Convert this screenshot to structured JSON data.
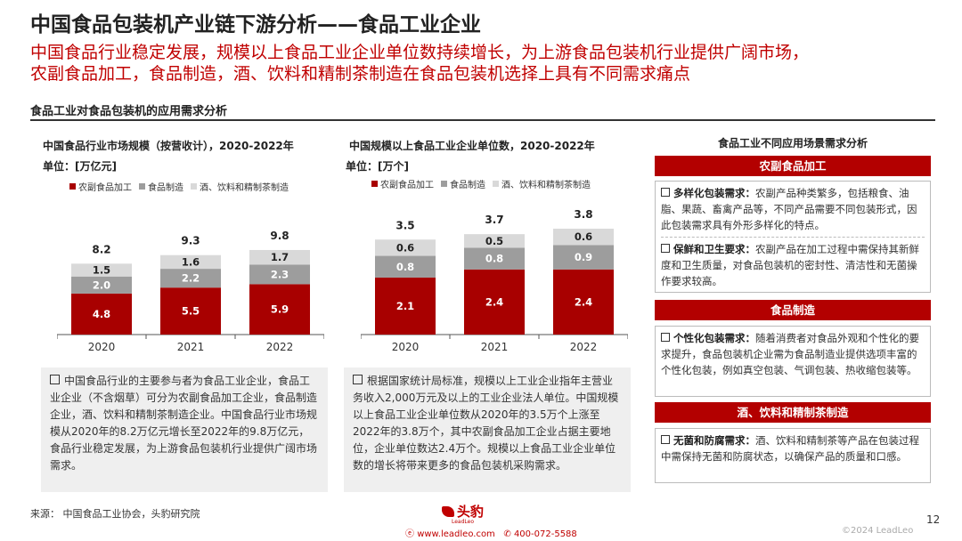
{
  "page": {
    "title": "中国食品包装机产业链下游分析——食品工业企业",
    "subtitle_line1": "中国食品行业稳定发展，规模以上食品工业企业单位数持续增长，为上游食品包装机行业提供广阔市场，",
    "subtitle_line2": "农副食品加工，食品制造，酒、饮料和精制茶制造在食品包装机选择上具有不同需求痛点",
    "section_title": "食品工业对食品包装机的应用需求分析"
  },
  "colors": {
    "dark_red": "#a80000",
    "gray": "#9d9d9d",
    "light_gray": "#d9d9d9"
  },
  "legend": [
    "农副食品加工",
    "食品制造",
    "酒、饮料和精制茶制造"
  ],
  "chart_data": [
    {
      "type": "bar",
      "stacked": true,
      "title": "中国食品行业市场规模（按营收计），2020-2022年",
      "unit": "单位：[万亿元]",
      "categories": [
        "2020",
        "2021",
        "2022"
      ],
      "series": [
        {
          "name": "农副食品加工",
          "values": [
            4.8,
            5.5,
            5.9
          ],
          "labels": [
            "4.8",
            "5.5",
            "5.9"
          ]
        },
        {
          "name": "食品制造",
          "values": [
            2.0,
            2.2,
            2.3
          ],
          "labels": [
            "2.0",
            "2.2",
            "2.3"
          ]
        },
        {
          "name": "酒、饮料和精制茶制造",
          "values": [
            1.5,
            1.6,
            1.7
          ],
          "labels": [
            "1.5",
            "1.6",
            "1.7"
          ]
        }
      ],
      "totals": [
        "8.2",
        "9.3",
        "9.8"
      ]
    },
    {
      "type": "bar",
      "stacked": true,
      "title": "中国规模以上食品工业企业单位数，2020-2022年",
      "unit": "单位：[万个]",
      "categories": [
        "2020",
        "2021",
        "2022"
      ],
      "series": [
        {
          "name": "农副食品加工",
          "values": [
            2.1,
            2.4,
            2.4
          ],
          "labels": [
            "2.1",
            "2.4",
            "2.4"
          ]
        },
        {
          "name": "食品制造",
          "values": [
            0.8,
            0.8,
            0.9
          ],
          "labels": [
            "0.8",
            "0.8",
            "0.9"
          ]
        },
        {
          "name": "酒、饮料和精制茶制造",
          "values": [
            0.6,
            0.5,
            0.6
          ],
          "labels": [
            "0.6",
            "0.5",
            "0.6"
          ]
        }
      ],
      "totals": [
        "3.5",
        "3.7",
        "3.8"
      ]
    }
  ],
  "notes": {
    "left": "中国食品行业的主要参与者为食品工业企业，食品工业企业（不含烟草）可分为农副食品加工企业，食品制造企业，酒、饮料和精制茶制造企业。中国食品行业市场规模从2020年的8.2万亿元增长至2022年的9.8万亿元，食品行业稳定发展，为上游食品包装机行业提供广阔市场需求。",
    "middle": "根据国家统计局标准，规模以上工业企业指年主营业务收入2,000万元及以上的工业企业法人单位。中国规模以上食品工业企业单位数从2020年的3.5万个上涨至2022年的3.8万个，其中农副食品加工企业占据主要地位，企业单位数达2.4万个。规模以上食品工业企业单位数的增长将带来更多的食品包装机采购需求。"
  },
  "right_panel": {
    "title": "食品工业不同应用场景需求分析",
    "sections": [
      {
        "header": "农副食品加工",
        "items": [
          {
            "label": "多样化包装需求：",
            "text": "农副产品种类繁多，包括粮食、油脂、果蔬、畜禽产品等，不同产品需要不同包装形式，因此包装需求具有外形多样化的特点。"
          },
          {
            "label": "保鲜和卫生要求：",
            "text": "农副产品在加工过程中需保持其新鲜度和卫生质量，对食品包装机的密封性、清洁性和无菌操作要求较高。"
          }
        ]
      },
      {
        "header": "食品制造",
        "items": [
          {
            "label": "个性化包装需求：",
            "text": "随着消费者对食品外观和个性化的要求提升，食品包装机企业需为食品制造业提供选项丰富的个性化包装，例如真空包装、气调包装、热收缩包装等。"
          }
        ]
      },
      {
        "header": "酒、饮料和精制茶制造",
        "items": [
          {
            "label": "无菌和防腐需求：",
            "text": "酒、饮料和精制茶等产品在包装过程中需保持无菌和防腐状态，以确保产品的质量和口感。"
          }
        ]
      }
    ]
  },
  "footer": {
    "source": "来源：   中国食品工业协会，头豹研究院",
    "logo_text": "头豹",
    "logo_sub": "LeadLeo",
    "website": "www.leadleo.com",
    "phone": "400-072-5588",
    "page_number": "12",
    "copyright": "©2024 LeadLeo"
  }
}
